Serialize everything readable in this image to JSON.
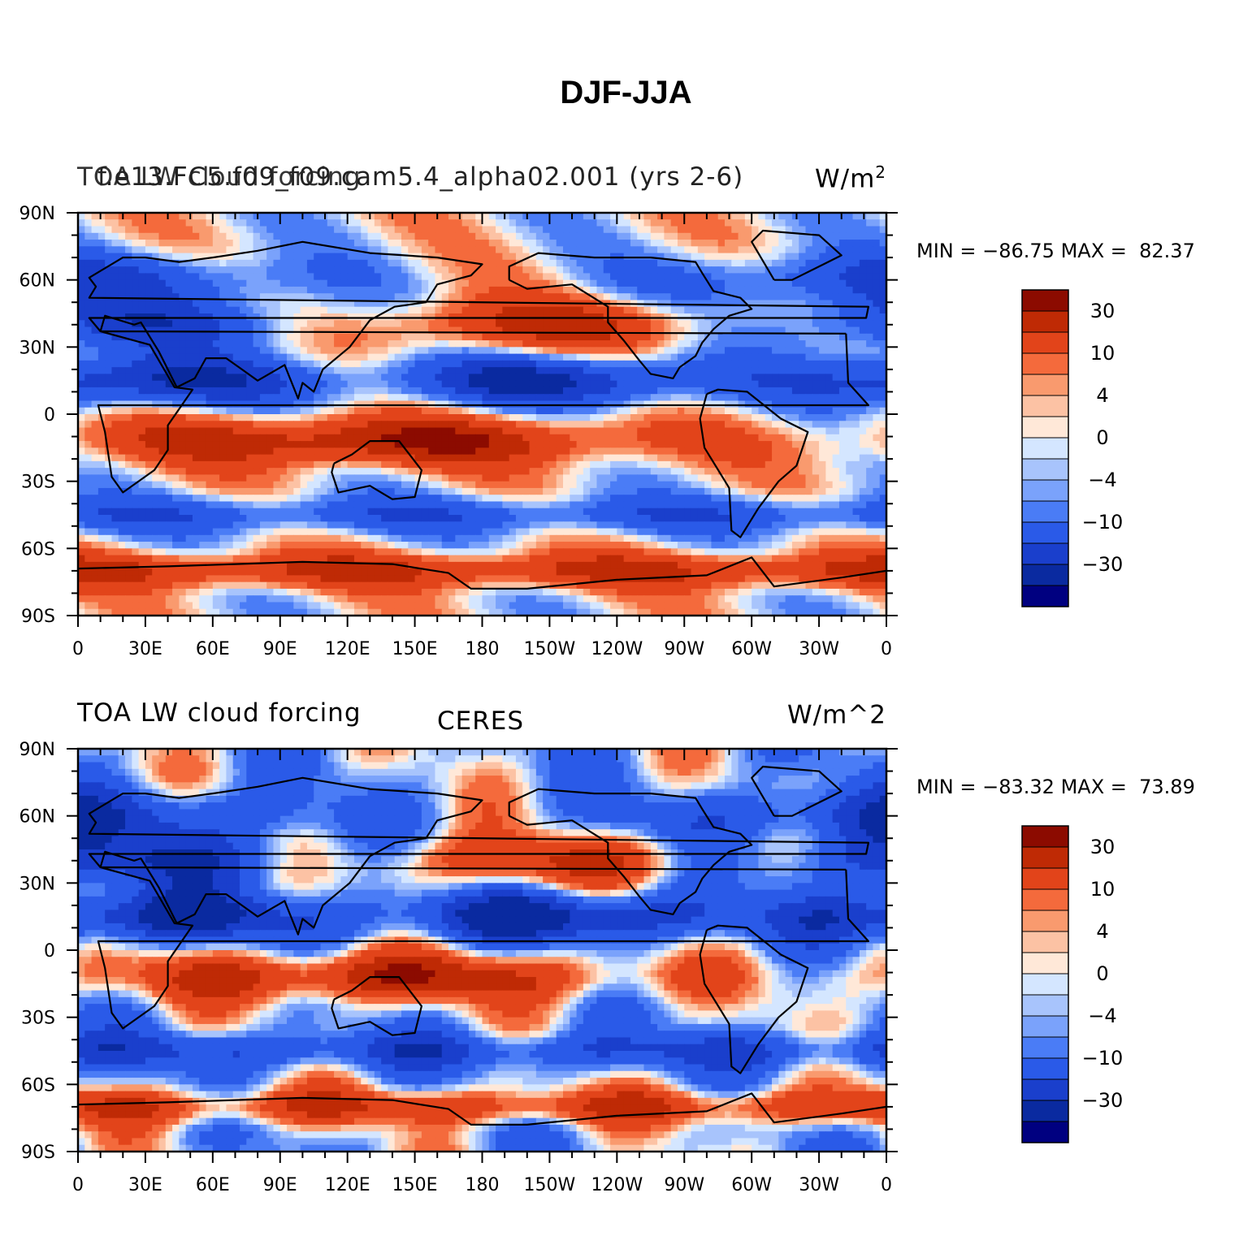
{
  "figure": {
    "title": "DJF-JJA"
  },
  "colorbar": {
    "colors": [
      "#000080",
      "#0a2aa0",
      "#1a3fcc",
      "#2a5ae8",
      "#4a7cf6",
      "#7aa2fb",
      "#a8c4fc",
      "#d4e6ff",
      "#ffe8d8",
      "#fcc2a4",
      "#f99a6e",
      "#f46a3c",
      "#e2441a",
      "#bf2a05",
      "#8c0b00"
    ],
    "labels": [
      "30",
      "10",
      "4",
      "0",
      "-4",
      "-10",
      "-30"
    ],
    "label_boundaries": [
      13,
      11,
      9,
      7,
      5,
      3,
      1
    ]
  },
  "axes": {
    "lat_labels": [
      "90N",
      "60N",
      "30N",
      "0",
      "30S",
      "60S",
      "90S"
    ],
    "lon_labels": [
      "0",
      "30E",
      "60E",
      "90E",
      "120E",
      "150E",
      "180",
      "150W",
      "120W",
      "90W",
      "60W",
      "30W",
      "0"
    ]
  },
  "panels": [
    {
      "id": "top",
      "left_label": "TOA LW cloud forcing",
      "center_label": "f.e13.FC5.f09_f09.cam5.4_alpha02.001 (yrs 2-6)",
      "right_label": "W/m",
      "right_label_sup": "2",
      "min_text": "MIN = −86.75",
      "max_text": "MAX =  82.37"
    },
    {
      "id": "bottom",
      "left_label": "TOA LW cloud forcing",
      "center_label": "CERES",
      "right_label": "W/m^2",
      "right_label_sup": "",
      "min_text": "MIN = −83.32",
      "max_text": "MAX =  73.89"
    }
  ]
}
